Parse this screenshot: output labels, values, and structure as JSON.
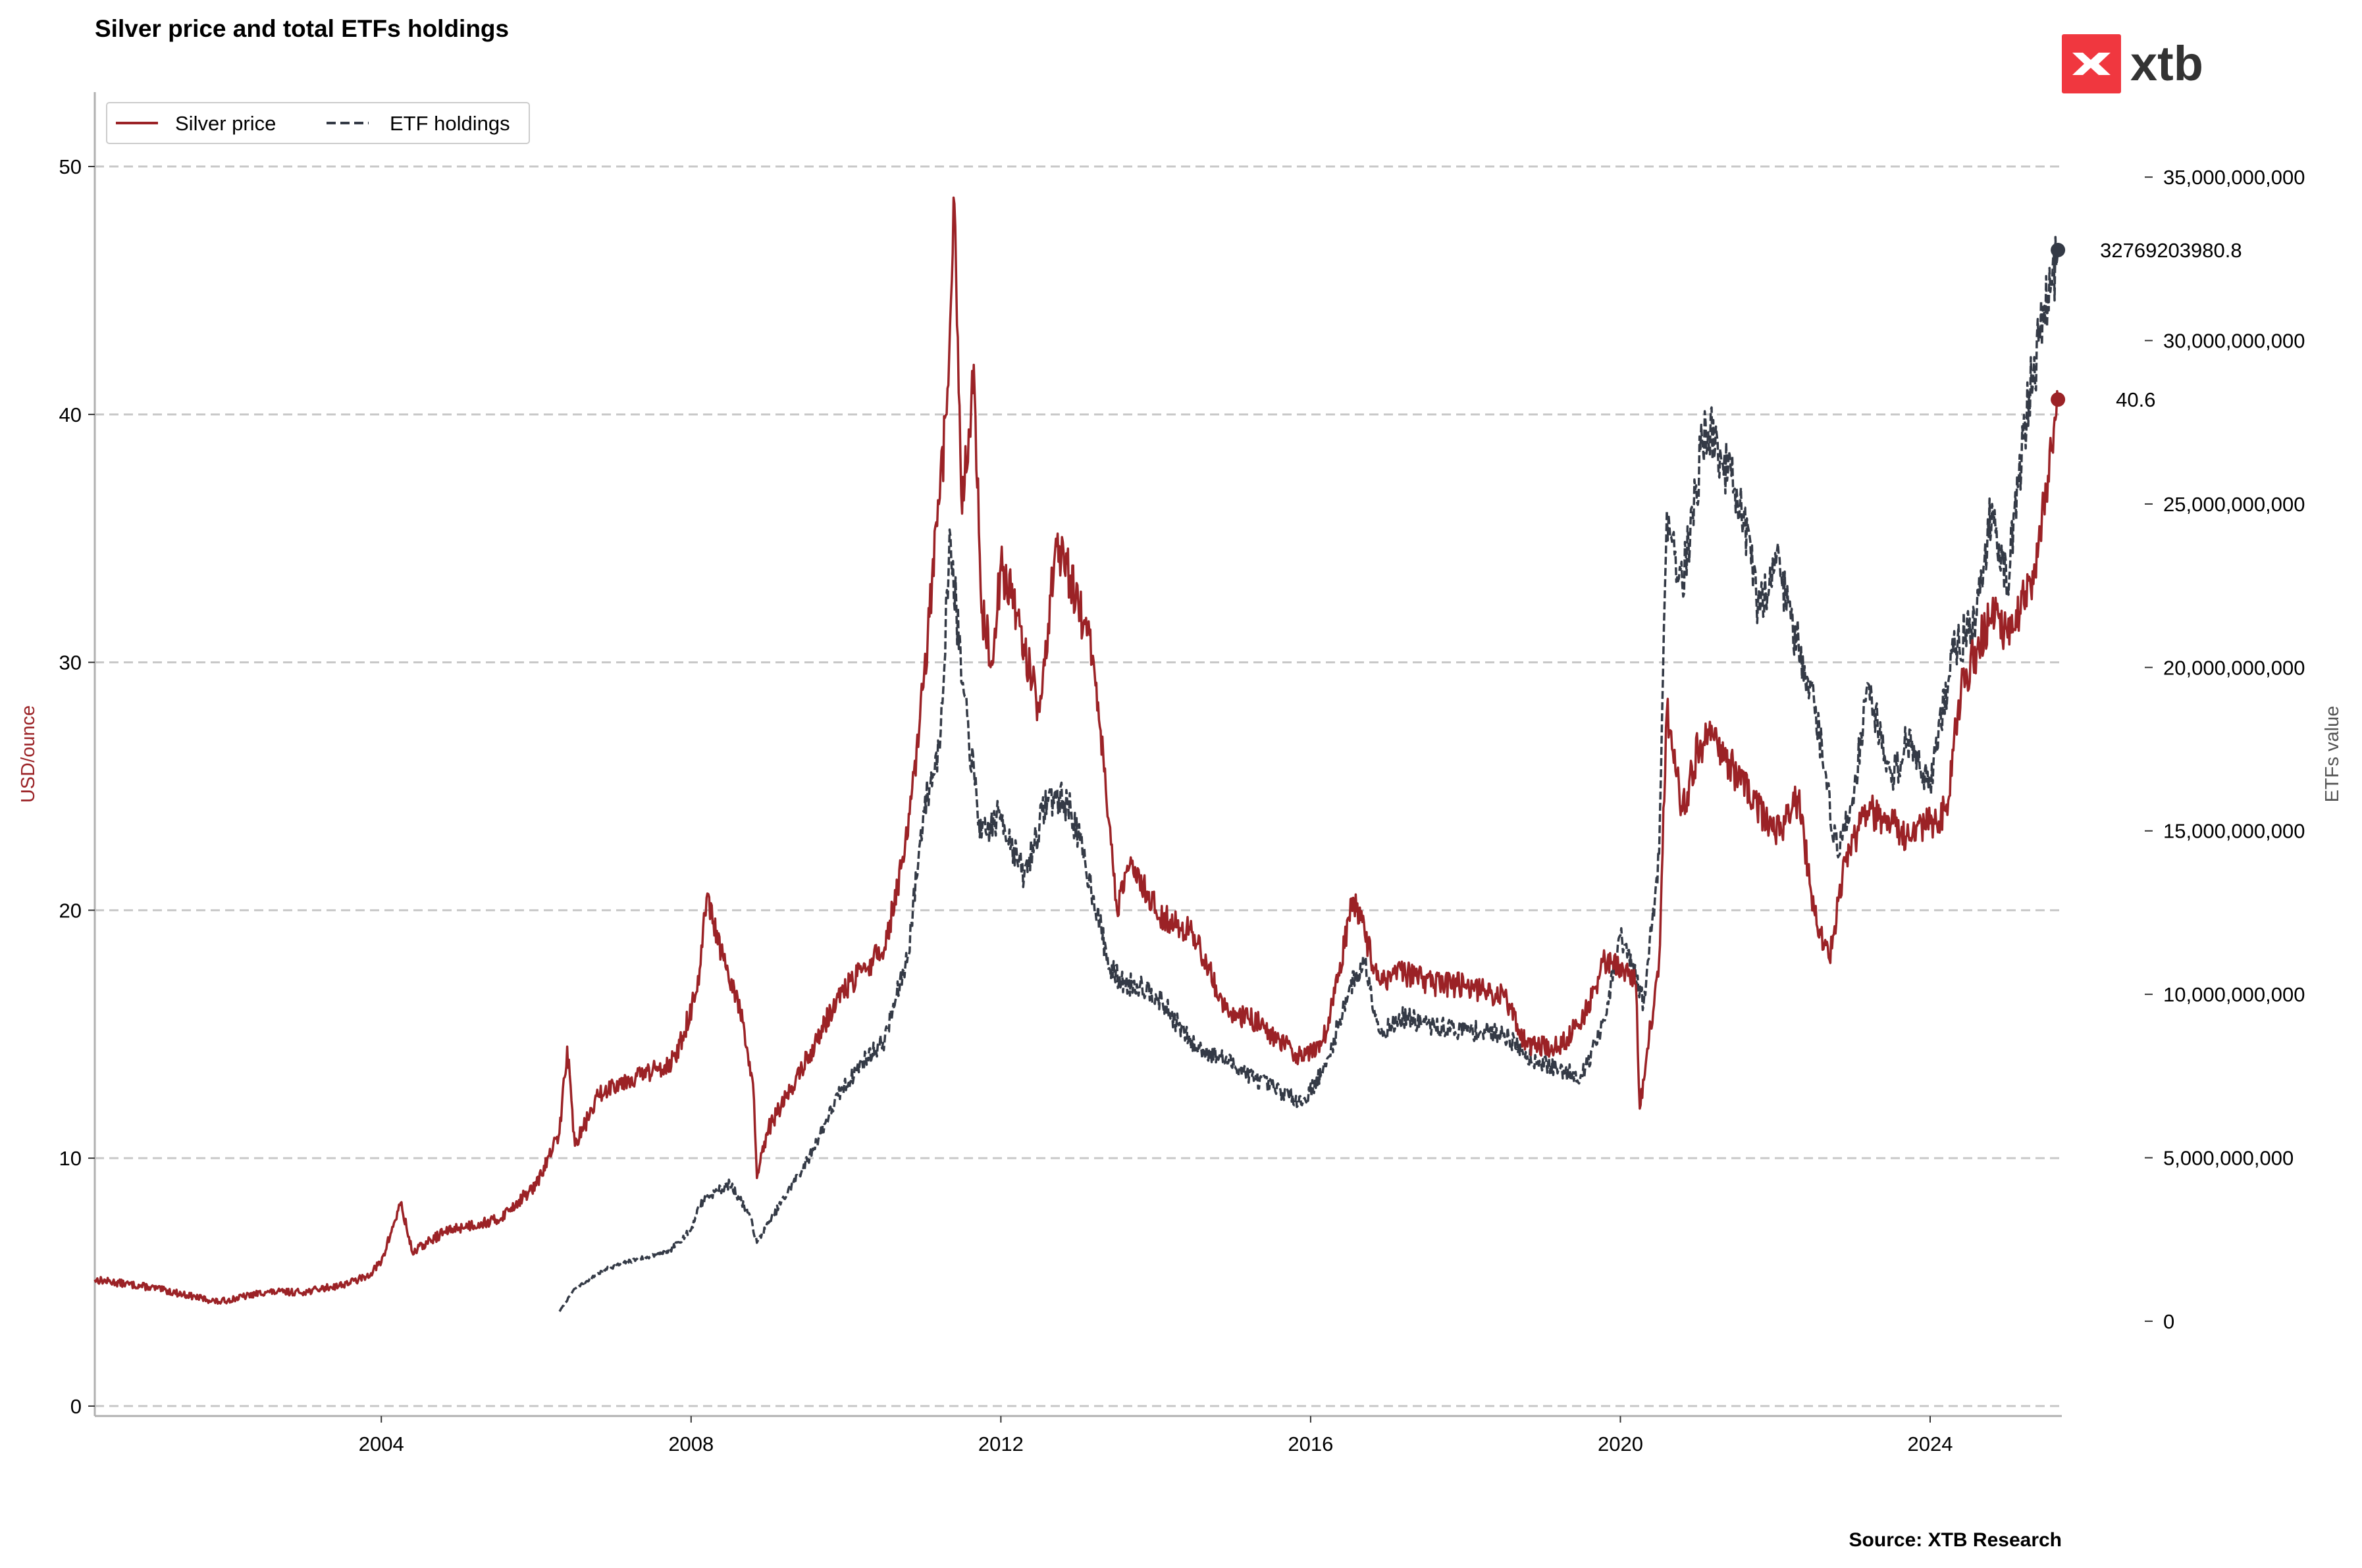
{
  "title": "Silver price and total ETFs holdings",
  "source": "Source: XTB Research",
  "logo": {
    "text": "xtb",
    "color": "#f0373f"
  },
  "colors": {
    "silver": "#9b2226",
    "etf": "#343a46",
    "grid": "#c8c8c8",
    "axis": "#b0b0b0"
  },
  "legend": {
    "silver_label": "Silver price",
    "etf_label": "ETF holdings"
  },
  "end_labels": {
    "etf": "32769203980.8",
    "silver": "40.6"
  },
  "chart_data": {
    "type": "line",
    "title": "Silver price and total ETFs holdings",
    "xlabel": "",
    "ylabel_left": "USD/ounce",
    "ylabel_right": "ETFs value",
    "xlim": [
      2000.3,
      2025.7
    ],
    "ylim_left": [
      -0.4,
      53
    ],
    "ylim_right": [
      -2900000000,
      37600000000
    ],
    "x_ticks": [
      2004,
      2008,
      2012,
      2016,
      2020,
      2024
    ],
    "y_ticks_left": [
      0,
      10,
      20,
      30,
      40,
      50
    ],
    "y_ticks_right": [
      0,
      5000000000,
      10000000000,
      15000000000,
      20000000000,
      25000000000,
      30000000000,
      35000000000
    ],
    "y_tick_labels_right": [
      "0",
      "5,000,000,000",
      "10,000,000,000",
      "15,000,000,000",
      "20,000,000,000",
      "25,000,000,000",
      "30,000,000,000",
      "35,000,000,000"
    ],
    "grid": "horizontal dashed",
    "legend_position": "top-left",
    "series": [
      {
        "name": "Silver price",
        "axis": "left",
        "style": "solid",
        "x": [
          2000.3,
          2001.0,
          2001.6,
          2001.9,
          2002.5,
          2003.0,
          2003.5,
          2003.8,
          2004.0,
          2004.25,
          2004.4,
          2004.8,
          2005.0,
          2005.5,
          2006.0,
          2006.3,
          2006.4,
          2006.5,
          2006.8,
          2007.0,
          2007.5,
          2007.8,
          2008.1,
          2008.2,
          2008.5,
          2008.6,
          2008.8,
          2008.85,
          2009.0,
          2009.5,
          2009.9,
          2010.2,
          2010.5,
          2010.8,
          2011.0,
          2011.3,
          2011.4,
          2011.5,
          2011.65,
          2011.75,
          2011.9,
          2012.0,
          2012.2,
          2012.5,
          2012.7,
          2012.9,
          2013.2,
          2013.4,
          2013.5,
          2013.7,
          2014.0,
          2014.5,
          2014.9,
          2015.3,
          2015.9,
          2016.2,
          2016.55,
          2016.7,
          2016.9,
          2017.2,
          2017.6,
          2018.0,
          2018.5,
          2018.8,
          2019.2,
          2019.5,
          2019.8,
          2020.0,
          2020.2,
          2020.25,
          2020.5,
          2020.6,
          2020.8,
          2021.0,
          2021.2,
          2021.5,
          2021.9,
          2022.0,
          2022.3,
          2022.5,
          2022.7,
          2022.9,
          2023.2,
          2023.5,
          2023.7,
          2024.0,
          2024.2,
          2024.4,
          2024.6,
          2024.8,
          2025.0,
          2025.3,
          2025.5,
          2025.65
        ],
        "values": [
          5.1,
          4.8,
          4.4,
          4.2,
          4.6,
          4.6,
          4.9,
          5.2,
          5.8,
          8.2,
          6.2,
          7.0,
          7.2,
          7.5,
          8.9,
          11.0,
          14.5,
          10.5,
          12.5,
          13.0,
          13.5,
          14.0,
          17.0,
          20.5,
          17.0,
          16.5,
          13.0,
          9.2,
          11.2,
          14.0,
          16.5,
          17.5,
          18.5,
          23.0,
          29.0,
          40.0,
          48.5,
          36.0,
          42.0,
          32.0,
          30.0,
          34.0,
          32.0,
          28.0,
          34.5,
          33.5,
          30.0,
          23.5,
          20.0,
          22.0,
          20.0,
          19.0,
          16.0,
          15.5,
          14.0,
          15.0,
          20.5,
          19.0,
          17.0,
          17.5,
          17.0,
          17.0,
          16.5,
          14.5,
          14.5,
          15.5,
          18.0,
          17.8,
          17.0,
          12.0,
          18.0,
          28.0,
          24.0,
          26.5,
          27.0,
          25.5,
          23.5,
          23.0,
          24.5,
          20.0,
          18.0,
          22.0,
          24.0,
          23.5,
          23.0,
          23.5,
          24.0,
          29.0,
          30.5,
          32.0,
          31.0,
          33.0,
          37.0,
          40.6
        ]
      },
      {
        "name": "ETF holdings",
        "axis": "right",
        "style": "dashed",
        "x": [
          2006.3,
          2006.5,
          2006.9,
          2007.3,
          2007.7,
          2008.0,
          2008.1,
          2008.2,
          2008.5,
          2008.75,
          2008.85,
          2009.0,
          2009.5,
          2009.9,
          2010.2,
          2010.5,
          2010.8,
          2011.0,
          2011.2,
          2011.35,
          2011.5,
          2011.75,
          2012.0,
          2012.3,
          2012.6,
          2012.75,
          2012.9,
          2013.2,
          2013.4,
          2013.6,
          2013.8,
          2014.0,
          2014.5,
          2014.9,
          2015.3,
          2015.9,
          2016.2,
          2016.5,
          2016.7,
          2016.9,
          2017.2,
          2017.6,
          2018.0,
          2018.5,
          2018.8,
          2019.2,
          2019.5,
          2019.8,
          2020.0,
          2020.2,
          2020.3,
          2020.5,
          2020.55,
          2020.6,
          2020.8,
          2021.1,
          2021.3,
          2021.5,
          2021.8,
          2022.0,
          2022.2,
          2022.5,
          2022.8,
          2023.0,
          2023.2,
          2023.5,
          2023.7,
          2024.0,
          2024.3,
          2024.6,
          2024.8,
          2025.0,
          2025.2,
          2025.4,
          2025.65
        ],
        "values": [
          300000000,
          1000000000,
          1600000000,
          1900000000,
          2100000000,
          2800000000,
          3500000000,
          3800000000,
          4200000000,
          3300000000,
          2400000000,
          3000000000,
          4900000000,
          6900000000,
          7900000000,
          8600000000,
          11200000000,
          15600000000,
          17500000000,
          24000000000,
          19500000000,
          14800000000,
          15500000000,
          13600000000,
          16000000000,
          16000000000,
          15700000000,
          13000000000,
          10800000000,
          10300000000,
          10300000000,
          10000000000,
          8400000000,
          8000000000,
          7400000000,
          6700000000,
          7800000000,
          10200000000,
          11000000000,
          8800000000,
          9300000000,
          9000000000,
          8900000000,
          8800000000,
          8100000000,
          7700000000,
          7500000000,
          9200000000,
          11800000000,
          10500000000,
          9700000000,
          14300000000,
          19800000000,
          24800000000,
          22500000000,
          27500000000,
          26400000000,
          25500000000,
          21700000000,
          23500000000,
          21500000000,
          19000000000,
          14300000000,
          16000000000,
          19500000000,
          16500000000,
          17800000000,
          16500000000,
          20500000000,
          21500000000,
          25000000000,
          22500000000,
          27000000000,
          30000000000,
          32769203980.8
        ]
      }
    ]
  }
}
